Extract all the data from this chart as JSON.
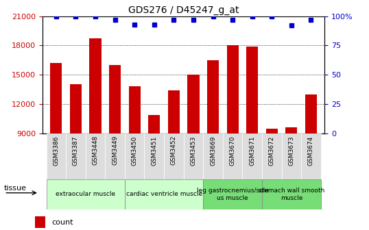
{
  "title": "GDS276 / D45247_g_at",
  "samples": [
    "GSM3386",
    "GSM3387",
    "GSM3448",
    "GSM3449",
    "GSM3450",
    "GSM3451",
    "GSM3452",
    "GSM3453",
    "GSM3669",
    "GSM3670",
    "GSM3671",
    "GSM3672",
    "GSM3673",
    "GSM3674"
  ],
  "counts": [
    16200,
    14000,
    18700,
    16000,
    13800,
    10900,
    13400,
    15000,
    16500,
    18000,
    17900,
    9500,
    9600,
    13000
  ],
  "percentiles": [
    100,
    100,
    100,
    97,
    93,
    93,
    97,
    97,
    100,
    97,
    100,
    100,
    92,
    97
  ],
  "bar_color": "#cc0000",
  "dot_color": "#0000cc",
  "ylim_left": [
    9000,
    21000
  ],
  "ylim_right": [
    0,
    100
  ],
  "yticks_left": [
    9000,
    12000,
    15000,
    18000,
    21000
  ],
  "yticks_right": [
    0,
    25,
    50,
    75,
    100
  ],
  "yticklabels_right": [
    "0",
    "25",
    "50",
    "75",
    "100%"
  ],
  "tissue_groups": [
    {
      "label": "extraocular muscle",
      "start": 0,
      "end": 3,
      "color": "#ccffcc"
    },
    {
      "label": "cardiac ventricle muscle",
      "start": 4,
      "end": 7,
      "color": "#ccffcc"
    },
    {
      "label": "leg gastrocnemius/sole\nus muscle",
      "start": 8,
      "end": 10,
      "color": "#77dd77"
    },
    {
      "label": "stomach wall smooth\nmuscle",
      "start": 11,
      "end": 13,
      "color": "#77dd77"
    }
  ],
  "tick_color_left": "#cc0000",
  "tick_color_right": "#0000cc",
  "xtick_bg_color": "#dddddd"
}
